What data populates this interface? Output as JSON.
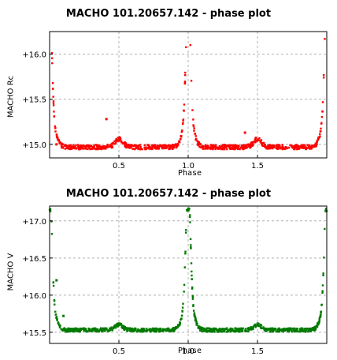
{
  "chart_data": [
    {
      "type": "scatter",
      "title": "MACHO 101.20657.142 - phase plot",
      "xlabel": "Phase",
      "ylabel": "MACHO Rc",
      "color": "#ff0000",
      "xlim": [
        0.0,
        2.0
      ],
      "ylim": [
        16.25,
        14.85
      ],
      "y_inverted": true,
      "xticks": [
        0.5,
        1.0,
        1.5
      ],
      "xtick_labels": [
        "0.5",
        "1.0",
        "1.5"
      ],
      "yticks": [
        15.0,
        15.5,
        16.0
      ],
      "ytick_labels": [
        "+15.0",
        "+15.5",
        "+16.0"
      ],
      "grid": true,
      "curve": {
        "base_mag": 14.97,
        "primary_min_phase": 0.0,
        "primary_depth": 1.35,
        "secondary_min_phase": 0.5,
        "secondary_depth": 0.09,
        "outliers": [
          [
            0.41,
            15.28
          ],
          [
            0.05,
            15.0
          ],
          [
            1.41,
            15.13
          ]
        ]
      }
    },
    {
      "type": "scatter",
      "title": "MACHO 101.20657.142 - phase plot",
      "xlabel": "Phase",
      "ylabel": "MACHO V",
      "color": "#007a00",
      "xlim": [
        0.0,
        2.0
      ],
      "ylim": [
        17.2,
        15.35
      ],
      "y_inverted": true,
      "xticks": [
        0.5,
        1.0,
        1.5
      ],
      "xtick_labels": [
        "0.5",
        "1.0",
        "1.5"
      ],
      "yticks": [
        15.5,
        16.0,
        16.5,
        17.0
      ],
      "ytick_labels": [
        "+15.5",
        "+16.0",
        "+16.5",
        "+17.0"
      ],
      "grid": true,
      "curve": {
        "base_mag": 15.53,
        "primary_min_phase": 0.0,
        "primary_depth": 1.62,
        "secondary_min_phase": 0.5,
        "secondary_depth": 0.07,
        "outliers": [
          [
            0.1,
            15.72
          ],
          [
            0.05,
            16.2
          ]
        ]
      }
    }
  ]
}
